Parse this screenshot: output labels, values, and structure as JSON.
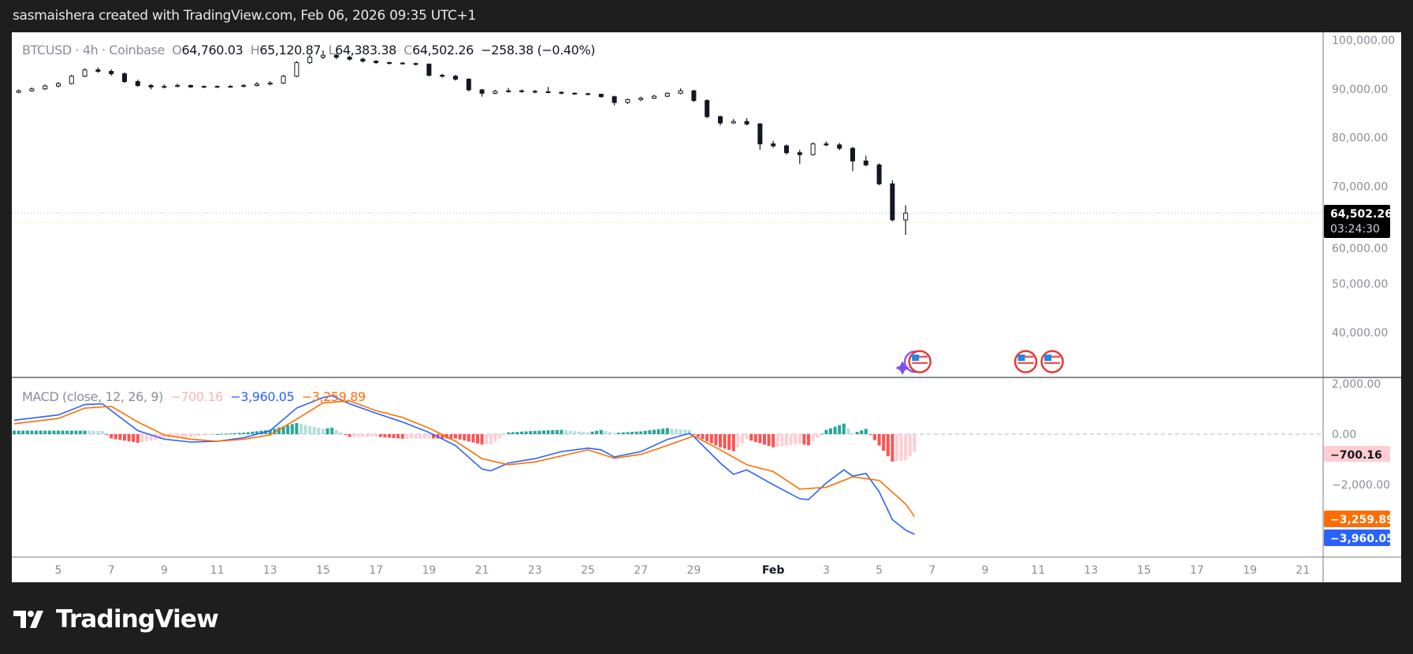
{
  "header": {
    "caption": "sasmaishera created with TradingView.com, Feb 06, 2026 09:35 UTC+1"
  },
  "legend": {
    "symbol": "BTCUSD · 4h · Coinbase",
    "o_label": "O",
    "o": "64,760.03",
    "h_label": "H",
    "h": "65,120.87",
    "l_label": "L",
    "l": "64,383.38",
    "c_label": "C",
    "c": "64,502.26",
    "change": "−258.38 (−0.40%)"
  },
  "macd_legend": {
    "name": "MACD (close, 12, 26, 9)",
    "hist": "−700.16",
    "macd": "−3,960.05",
    "signal": "−3,259.89"
  },
  "price_label": {
    "price": "64,502.26",
    "countdown": "03:24:30"
  },
  "macd_labels": {
    "hist": "−700.16",
    "signal": "−3,259.89",
    "macd": "−3,960.05"
  },
  "branding": {
    "logo_text": "TradingView"
  },
  "colors": {
    "up": "#ffffff",
    "down": "#131722",
    "macd": "#2962ff",
    "signal": "#ff6d00",
    "hist_up_strong": "#26a69a",
    "hist_up_weak": "#b2dfdb",
    "hist_down_strong": "#ff5252",
    "hist_down_weak": "#ffcdd2",
    "price_tag": "#000000"
  },
  "events": [
    {
      "icon": "us-flag-icon",
      "date": "2026-02-06T00:00",
      "with_ai_marker": true
    },
    {
      "icon": "us-flag-icon",
      "date": "2026-02-10T00:00"
    },
    {
      "icon": "us-flag-icon",
      "date": "2026-02-11T00:00"
    }
  ],
  "chart_data": [
    {
      "type": "candlestick",
      "title": "BTCUSD · 4h · Coinbase",
      "ylim": [
        35000,
        100000
      ],
      "yticks": [
        "100,000.00",
        "90,000.00",
        "80,000.00",
        "70,000.00",
        "60,000.00",
        "50,000.00",
        "40,000.00"
      ],
      "ytick_values": [
        100000,
        90000,
        80000,
        70000,
        60000,
        50000,
        40000
      ],
      "xticks": [
        {
          "label": "5",
          "date": "2026-01-05"
        },
        {
          "label": "7",
          "date": "2026-01-07"
        },
        {
          "label": "9",
          "date": "2026-01-09"
        },
        {
          "label": "11",
          "date": "2026-01-11"
        },
        {
          "label": "13",
          "date": "2026-01-13"
        },
        {
          "label": "15",
          "date": "2026-01-15"
        },
        {
          "label": "17",
          "date": "2026-01-17"
        },
        {
          "label": "19",
          "date": "2026-01-19"
        },
        {
          "label": "21",
          "date": "2026-01-21"
        },
        {
          "label": "23",
          "date": "2026-01-23"
        },
        {
          "label": "25",
          "date": "2026-01-25"
        },
        {
          "label": "27",
          "date": "2026-01-27"
        },
        {
          "label": "29",
          "date": "2026-01-29"
        },
        {
          "label": "Feb",
          "date": "2026-02-01"
        },
        {
          "label": "3",
          "date": "2026-02-03"
        },
        {
          "label": "5",
          "date": "2026-02-05"
        },
        {
          "label": "7",
          "date": "2026-02-07"
        },
        {
          "label": "9",
          "date": "2026-02-09"
        },
        {
          "label": "11",
          "date": "2026-02-11"
        },
        {
          "label": "13",
          "date": "2026-02-13"
        },
        {
          "label": "15",
          "date": "2026-02-15"
        },
        {
          "label": "17",
          "date": "2026-02-17"
        },
        {
          "label": "19",
          "date": "2026-02-19"
        },
        {
          "label": "21",
          "date": "2026-02-21"
        }
      ],
      "last_price": 64502.26,
      "candles_columns": [
        "time",
        "open",
        "high",
        "low",
        "close"
      ],
      "candles": [
        [
          "2026-01-03T12:00",
          89300,
          89900,
          89100,
          89600
        ],
        [
          "2026-01-04T00:00",
          89600,
          90300,
          89400,
          90000
        ],
        [
          "2026-01-04T12:00",
          90000,
          90900,
          89800,
          90600
        ],
        [
          "2026-01-05T00:00",
          90600,
          91400,
          90300,
          91100
        ],
        [
          "2026-01-05T12:00",
          91100,
          92900,
          90900,
          92600
        ],
        [
          "2026-01-06T00:00",
          92600,
          94200,
          92400,
          93900
        ],
        [
          "2026-01-06T12:00",
          93900,
          94400,
          93300,
          93600
        ],
        [
          "2026-01-07T00:00",
          93600,
          94000,
          92700,
          93100
        ],
        [
          "2026-01-07T12:00",
          93100,
          93400,
          91200,
          91500
        ],
        [
          "2026-01-08T00:00",
          91500,
          91900,
          90400,
          90700
        ],
        [
          "2026-01-08T12:00",
          90700,
          91000,
          89900,
          90400
        ],
        [
          "2026-01-09T00:00",
          90400,
          90900,
          90100,
          90500
        ],
        [
          "2026-01-09T12:00",
          90500,
          91100,
          90300,
          90700
        ],
        [
          "2026-01-10T00:00",
          90700,
          90900,
          90200,
          90400
        ],
        [
          "2026-01-10T12:00",
          90400,
          90700,
          90200,
          90500
        ],
        [
          "2026-01-11T00:00",
          90500,
          90700,
          90200,
          90400
        ],
        [
          "2026-01-11T12:00",
          90400,
          90800,
          90300,
          90500
        ],
        [
          "2026-01-12T00:00",
          90500,
          91000,
          90300,
          90700
        ],
        [
          "2026-01-12T12:00",
          90700,
          91400,
          90500,
          91000
        ],
        [
          "2026-01-13T00:00",
          91000,
          91600,
          90700,
          91200
        ],
        [
          "2026-01-13T12:00",
          91200,
          92900,
          91000,
          92600
        ],
        [
          "2026-01-14T00:00",
          92600,
          95700,
          92400,
          95400
        ],
        [
          "2026-01-14T12:00",
          95400,
          97000,
          95100,
          96500
        ],
        [
          "2026-01-15T00:00",
          96500,
          97900,
          96100,
          96900
        ],
        [
          "2026-01-15T12:00",
          96900,
          97300,
          96100,
          96500
        ],
        [
          "2026-01-16T00:00",
          96500,
          96800,
          95800,
          96100
        ],
        [
          "2026-01-16T12:00",
          96100,
          96400,
          95400,
          95700
        ],
        [
          "2026-01-17T00:00",
          95700,
          95900,
          95100,
          95400
        ],
        [
          "2026-01-17T12:00",
          95400,
          95600,
          95000,
          95300
        ],
        [
          "2026-01-18T00:00",
          95300,
          95500,
          95000,
          95200
        ],
        [
          "2026-01-18T12:00",
          95200,
          95400,
          94800,
          95100
        ],
        [
          "2026-01-19T00:00",
          95100,
          95200,
          92500,
          92800
        ],
        [
          "2026-01-19T12:00",
          92800,
          93100,
          92300,
          92600
        ],
        [
          "2026-01-20T00:00",
          92600,
          92900,
          91700,
          92000
        ],
        [
          "2026-01-20T12:00",
          92000,
          92200,
          89500,
          89800
        ],
        [
          "2026-01-21T00:00",
          89800,
          90000,
          88400,
          89100
        ],
        [
          "2026-01-21T12:00",
          89100,
          89800,
          88900,
          89500
        ],
        [
          "2026-01-22T00:00",
          89500,
          90200,
          89200,
          89600
        ],
        [
          "2026-01-22T12:00",
          89600,
          89900,
          89200,
          89500
        ],
        [
          "2026-01-23T00:00",
          89500,
          89800,
          89100,
          89400
        ],
        [
          "2026-01-23T12:00",
          89400,
          90400,
          89100,
          89300
        ],
        [
          "2026-01-24T00:00",
          89300,
          89500,
          88900,
          89100
        ],
        [
          "2026-01-24T12:00",
          89100,
          89300,
          88800,
          89000
        ],
        [
          "2026-01-25T00:00",
          89000,
          89200,
          88700,
          88900
        ],
        [
          "2026-01-25T12:00",
          88900,
          89000,
          88200,
          88400
        ],
        [
          "2026-01-26T00:00",
          88400,
          88600,
          86600,
          87200
        ],
        [
          "2026-01-26T12:00",
          87200,
          88000,
          86900,
          87800
        ],
        [
          "2026-01-27T00:00",
          87800,
          88400,
          87500,
          88100
        ],
        [
          "2026-01-27T12:00",
          88100,
          88800,
          87900,
          88500
        ],
        [
          "2026-01-28T00:00",
          88500,
          89300,
          88300,
          89100
        ],
        [
          "2026-01-28T12:00",
          89100,
          90100,
          88900,
          89600
        ],
        [
          "2026-01-29T00:00",
          89600,
          89800,
          87300,
          87600
        ],
        [
          "2026-01-29T12:00",
          87600,
          87900,
          84000,
          84300
        ],
        [
          "2026-01-30T00:00",
          84300,
          84500,
          82500,
          83000
        ],
        [
          "2026-01-30T12:00",
          83000,
          83800,
          82800,
          83300
        ],
        [
          "2026-01-31T00:00",
          83300,
          84000,
          82500,
          82800
        ],
        [
          "2026-01-31T12:00",
          82800,
          83000,
          77500,
          78700
        ],
        [
          "2026-02-01T00:00",
          78700,
          79300,
          77900,
          78300
        ],
        [
          "2026-02-01T12:00",
          78300,
          78600,
          76500,
          76900
        ],
        [
          "2026-02-02T00:00",
          76900,
          77500,
          74600,
          76500
        ],
        [
          "2026-02-02T12:00",
          76500,
          79000,
          76300,
          78700
        ],
        [
          "2026-02-03T00:00",
          78700,
          79200,
          78200,
          78500
        ],
        [
          "2026-02-03T12:00",
          78500,
          78900,
          77400,
          77800
        ],
        [
          "2026-02-04T00:00",
          77800,
          78100,
          73100,
          75200
        ],
        [
          "2026-02-04T12:00",
          75200,
          76300,
          74100,
          74400
        ],
        [
          "2026-02-05T00:00",
          74400,
          74700,
          70200,
          70500
        ],
        [
          "2026-02-05T12:00",
          70500,
          71200,
          62800,
          63100
        ],
        [
          "2026-02-06T00:00",
          63100,
          66100,
          60000,
          64502.26
        ]
      ]
    },
    {
      "type": "line",
      "title": "MACD (close, 12, 26, 9)",
      "ylim": [
        -4200,
        2000
      ],
      "yticks": [
        "2,000.00",
        "0.00",
        "−2,000.00"
      ],
      "ytick_values": [
        2000,
        0,
        -2000
      ],
      "series": [
        {
          "name": "MACD",
          "color": "#2962ff",
          "points": [
            [
              "2026-01-03T08:00",
              550
            ],
            [
              "2026-01-05T00:00",
              760
            ],
            [
              "2026-01-06T00:00",
              1170
            ],
            [
              "2026-01-06T16:00",
              1200
            ],
            [
              "2026-01-07T00:00",
              930
            ],
            [
              "2026-01-08T00:00",
              140
            ],
            [
              "2026-01-09T00:00",
              -200
            ],
            [
              "2026-01-10T00:00",
              -310
            ],
            [
              "2026-01-11T00:00",
              -280
            ],
            [
              "2026-01-12T00:00",
              -140
            ],
            [
              "2026-01-13T00:00",
              140
            ],
            [
              "2026-01-14T00:00",
              1030
            ],
            [
              "2026-01-15T00:00",
              1450
            ],
            [
              "2026-01-15T08:00",
              1520
            ],
            [
              "2026-01-16T00:00",
              1200
            ],
            [
              "2026-01-17T00:00",
              830
            ],
            [
              "2026-01-18T00:00",
              480
            ],
            [
              "2026-01-19T00:00",
              70
            ],
            [
              "2026-01-20T00:00",
              -450
            ],
            [
              "2026-01-21T00:00",
              -1380
            ],
            [
              "2026-01-21T08:00",
              -1450
            ],
            [
              "2026-01-22T00:00",
              -1140
            ],
            [
              "2026-01-23T00:00",
              -970
            ],
            [
              "2026-01-24T00:00",
              -690
            ],
            [
              "2026-01-25T00:00",
              -550
            ],
            [
              "2026-01-25T12:00",
              -620
            ],
            [
              "2026-01-26T00:00",
              -900
            ],
            [
              "2026-01-27T00:00",
              -690
            ],
            [
              "2026-01-28T00:00",
              -210
            ],
            [
              "2026-01-28T20:00",
              30
            ],
            [
              "2026-01-29T00:00",
              -100
            ],
            [
              "2026-01-30T00:00",
              -1140
            ],
            [
              "2026-01-30T12:00",
              -1590
            ],
            [
              "2026-01-31T00:00",
              -1410
            ],
            [
              "2026-02-01T00:00",
              -2000
            ],
            [
              "2026-02-02T00:00",
              -2550
            ],
            [
              "2026-02-02T08:00",
              -2590
            ],
            [
              "2026-02-03T00:00",
              -1930
            ],
            [
              "2026-02-03T16:00",
              -1410
            ],
            [
              "2026-02-04T00:00",
              -1660
            ],
            [
              "2026-02-04T12:00",
              -1550
            ],
            [
              "2026-02-05T00:00",
              -2280
            ],
            [
              "2026-02-05T12:00",
              -3380
            ],
            [
              "2026-02-06T00:00",
              -3790
            ],
            [
              "2026-02-06T08:00",
              -3960.05
            ]
          ]
        },
        {
          "name": "Signal",
          "color": "#ff6d00",
          "points": [
            [
              "2026-01-03T08:00",
              410
            ],
            [
              "2026-01-05T00:00",
              620
            ],
            [
              "2026-01-06T00:00",
              1030
            ],
            [
              "2026-01-07T00:00",
              1100
            ],
            [
              "2026-01-08T00:00",
              480
            ],
            [
              "2026-01-09T00:00",
              -30
            ],
            [
              "2026-01-10T00:00",
              -200
            ],
            [
              "2026-01-11T00:00",
              -280
            ],
            [
              "2026-01-12T00:00",
              -200
            ],
            [
              "2026-01-13T00:00",
              -30
            ],
            [
              "2026-01-14T00:00",
              590
            ],
            [
              "2026-01-15T00:00",
              1240
            ],
            [
              "2026-01-16T00:00",
              1310
            ],
            [
              "2026-01-17T00:00",
              930
            ],
            [
              "2026-01-18T00:00",
              660
            ],
            [
              "2026-01-19T00:00",
              240
            ],
            [
              "2026-01-20T00:00",
              -280
            ],
            [
              "2026-01-21T00:00",
              -970
            ],
            [
              "2026-01-22T00:00",
              -1210
            ],
            [
              "2026-01-23T00:00",
              -1100
            ],
            [
              "2026-01-24T00:00",
              -860
            ],
            [
              "2026-01-25T00:00",
              -620
            ],
            [
              "2026-01-26T00:00",
              -950
            ],
            [
              "2026-01-27T00:00",
              -800
            ],
            [
              "2026-01-28T00:00",
              -450
            ],
            [
              "2026-01-29T00:00",
              -70
            ],
            [
              "2026-01-30T00:00",
              -620
            ],
            [
              "2026-01-31T00:00",
              -1210
            ],
            [
              "2026-02-01T00:00",
              -1480
            ],
            [
              "2026-02-02T00:00",
              -2170
            ],
            [
              "2026-02-03T00:00",
              -2100
            ],
            [
              "2026-02-04T00:00",
              -1690
            ],
            [
              "2026-02-05T00:00",
              -1830
            ],
            [
              "2026-02-06T00:00",
              -2760
            ],
            [
              "2026-02-06T08:00",
              -3259.89
            ]
          ]
        }
      ],
      "histogram": "MACD − Signal",
      "last_histogram": -700.16
    }
  ]
}
